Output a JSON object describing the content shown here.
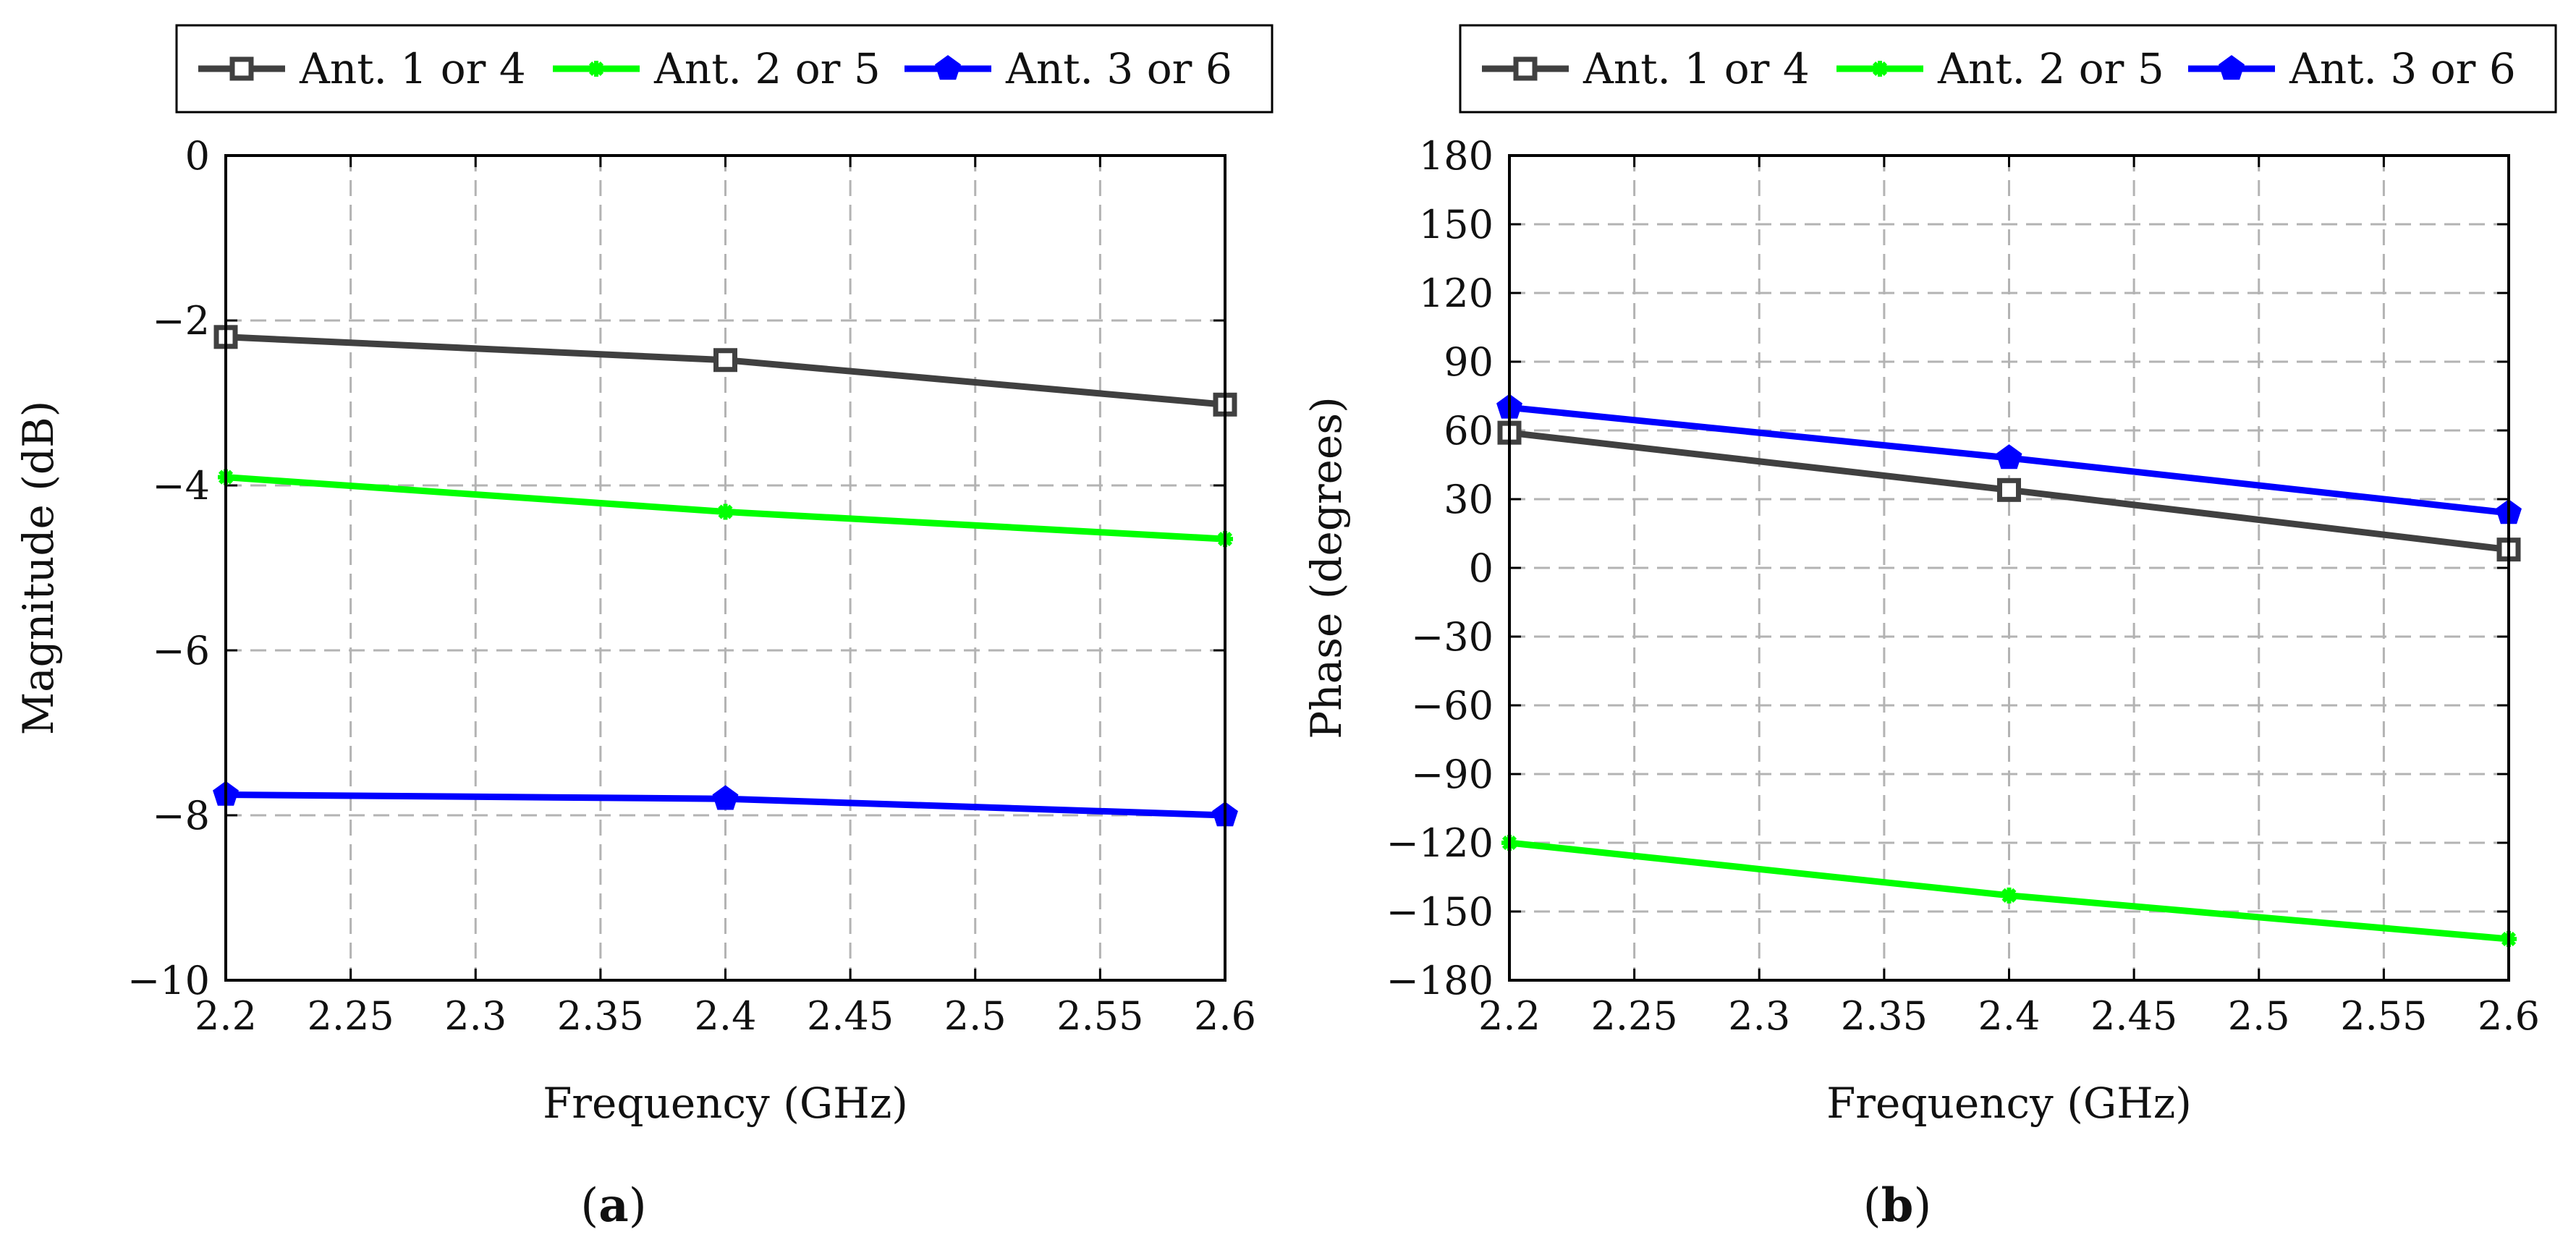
{
  "colors": {
    "ant14": "#404040",
    "ant25": "#00ff00",
    "ant36": "#0000ff",
    "grid": "#b3b3b3",
    "axis": "#000000"
  },
  "chart_data": [
    {
      "id": "a",
      "type": "line",
      "caption": {
        "open": "(",
        "letter": "a",
        "close": ")"
      },
      "xlabel": "Frequency (GHz)",
      "ylabel": "Magnitude (dB)",
      "xlim": [
        2.2,
        2.6
      ],
      "ylim": [
        -10,
        0
      ],
      "xticks": [
        2.2,
        2.25,
        2.3,
        2.35,
        2.4,
        2.45,
        2.5,
        2.55,
        2.6
      ],
      "xtick_labels": [
        "2.2",
        "2.25",
        "2.3",
        "2.35",
        "2.4",
        "2.45",
        "2.5",
        "2.55",
        "2.6"
      ],
      "yticks": [
        0,
        -2,
        -4,
        -6,
        -8,
        -10
      ],
      "ytick_labels": [
        "0",
        "−2",
        "−4",
        "−6",
        "−8",
        "−10"
      ],
      "grid": true,
      "legend_position": "top",
      "series": [
        {
          "name": "Ant. 1 or 4",
          "color_key": "ant14",
          "marker": "square",
          "x": [
            2.2,
            2.4,
            2.6
          ],
          "y": [
            -2.2,
            -2.48,
            -3.02
          ]
        },
        {
          "name": "Ant. 2 or 5",
          "color_key": "ant25",
          "marker": "star",
          "x": [
            2.2,
            2.4,
            2.6
          ],
          "y": [
            -3.9,
            -4.32,
            -4.65
          ]
        },
        {
          "name": "Ant. 3 or 6",
          "color_key": "ant36",
          "marker": "pentagon",
          "x": [
            2.2,
            2.4,
            2.6
          ],
          "y": [
            -7.75,
            -7.8,
            -8.0
          ]
        }
      ]
    },
    {
      "id": "b",
      "type": "line",
      "caption": {
        "open": "(",
        "letter": "b",
        "close": ")"
      },
      "xlabel": "Frequency (GHz)",
      "ylabel": "Phase (degrees)",
      "xlim": [
        2.2,
        2.6
      ],
      "ylim": [
        -180,
        180
      ],
      "xticks": [
        2.2,
        2.25,
        2.3,
        2.35,
        2.4,
        2.45,
        2.5,
        2.55,
        2.6
      ],
      "xtick_labels": [
        "2.2",
        "2.25",
        "2.3",
        "2.35",
        "2.4",
        "2.45",
        "2.5",
        "2.55",
        "2.6"
      ],
      "yticks": [
        180,
        150,
        120,
        90,
        60,
        30,
        0,
        -30,
        -60,
        -90,
        -120,
        -150,
        -180
      ],
      "ytick_labels": [
        "180",
        "150",
        "120",
        "90",
        "60",
        "30",
        "0",
        "−30",
        "−60",
        "−90",
        "−120",
        "−150",
        "−180"
      ],
      "grid": true,
      "legend_position": "top",
      "series": [
        {
          "name": "Ant. 1 or 4",
          "color_key": "ant14",
          "marker": "square",
          "x": [
            2.2,
            2.4,
            2.6
          ],
          "y": [
            59,
            34,
            8
          ]
        },
        {
          "name": "Ant. 2 or 5",
          "color_key": "ant25",
          "marker": "star",
          "x": [
            2.2,
            2.4,
            2.6
          ],
          "y": [
            -120,
            -143,
            -162
          ]
        },
        {
          "name": "Ant. 3 or 6",
          "color_key": "ant36",
          "marker": "pentagon",
          "x": [
            2.2,
            2.4,
            2.6
          ],
          "y": [
            70,
            48,
            24
          ]
        }
      ]
    }
  ]
}
